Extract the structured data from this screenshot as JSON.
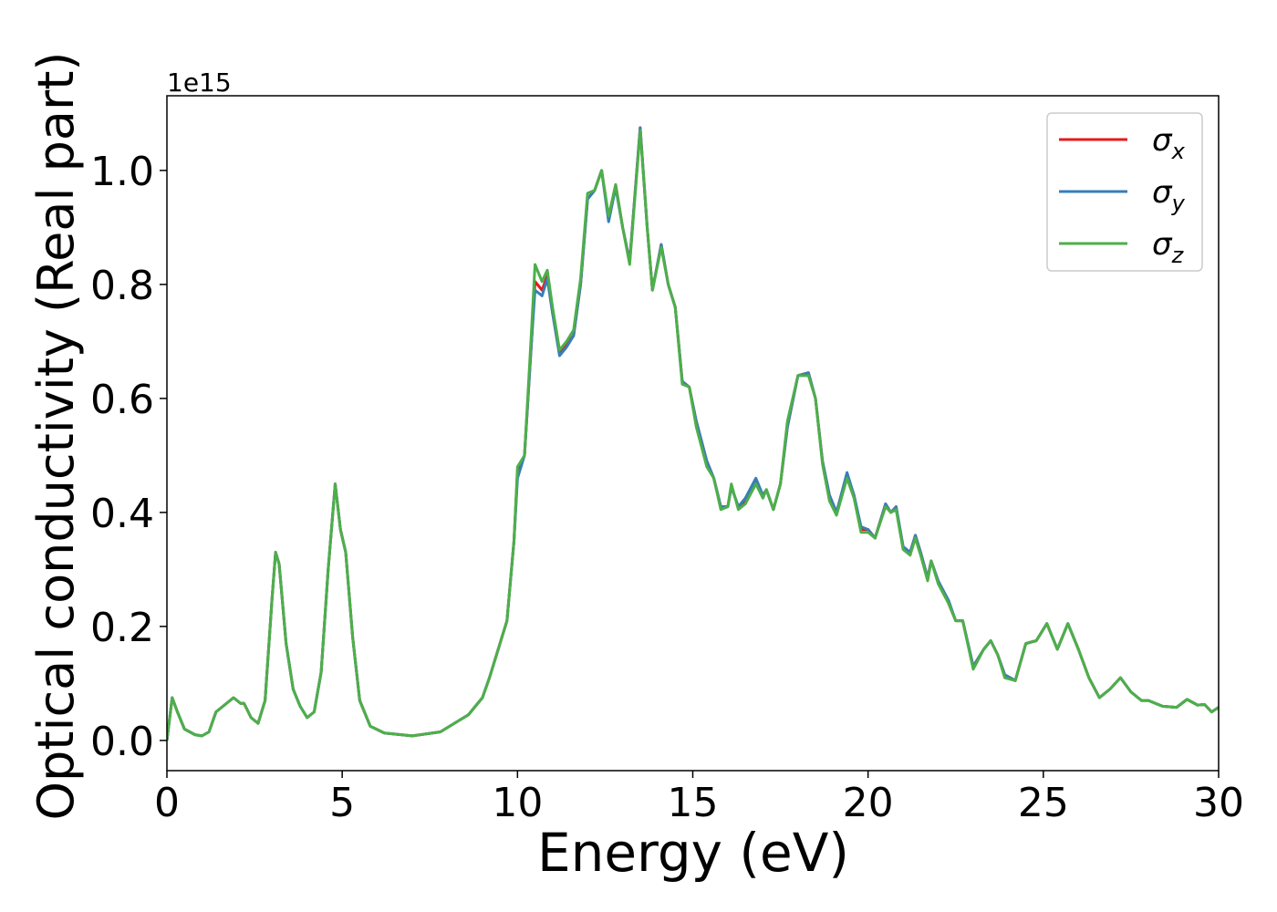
{
  "chart_data": {
    "type": "line",
    "xlabel": "Energy (eV)",
    "ylabel": "Optical conductivity (Real part)",
    "y_offset_label": "1e15",
    "x": [
      0,
      0.15,
      0.3,
      0.5,
      0.8,
      1.0,
      1.2,
      1.4,
      1.6,
      1.8,
      1.9,
      2.1,
      2.2,
      2.4,
      2.6,
      2.8,
      3.0,
      3.1,
      3.2,
      3.4,
      3.6,
      3.8,
      4.0,
      4.2,
      4.4,
      4.6,
      4.8,
      4.95,
      5.1,
      5.3,
      5.5,
      5.8,
      6.2,
      7.0,
      7.8,
      8.2,
      8.6,
      9.0,
      9.2,
      9.5,
      9.7,
      9.9,
      10.0,
      10.2,
      10.4,
      10.5,
      10.7,
      10.85,
      11.0,
      11.2,
      11.4,
      11.6,
      11.8,
      12.0,
      12.2,
      12.4,
      12.6,
      12.8,
      13.0,
      13.2,
      13.5,
      13.7,
      13.85,
      14.1,
      14.3,
      14.5,
      14.7,
      14.9,
      15.1,
      15.4,
      15.6,
      15.8,
      16.0,
      16.1,
      16.3,
      16.5,
      16.8,
      17.0,
      17.1,
      17.3,
      17.5,
      17.7,
      18.0,
      18.3,
      18.5,
      18.7,
      18.9,
      19.1,
      19.4,
      19.6,
      19.8,
      20.0,
      20.2,
      20.5,
      20.65,
      20.8,
      21.0,
      21.2,
      21.35,
      21.5,
      21.7,
      21.8,
      22.0,
      22.3,
      22.5,
      22.7,
      23.0,
      23.3,
      23.5,
      23.7,
      23.9,
      24.2,
      24.5,
      24.8,
      25.1,
      25.4,
      25.7,
      26.0,
      26.3,
      26.6,
      26.9,
      27.2,
      27.5,
      27.8,
      28.0,
      28.4,
      28.8,
      29.1,
      29.4,
      29.6,
      29.8,
      30.0
    ],
    "series": [
      {
        "name": "σx",
        "color": "#e41a1c",
        "values": [
          0,
          0.075,
          0.05,
          0.02,
          0.01,
          0.008,
          0.015,
          0.05,
          0.06,
          0.07,
          0.075,
          0.065,
          0.065,
          0.04,
          0.03,
          0.07,
          0.25,
          0.33,
          0.31,
          0.17,
          0.09,
          0.06,
          0.04,
          0.05,
          0.12,
          0.3,
          0.45,
          0.37,
          0.33,
          0.18,
          0.07,
          0.025,
          0.013,
          0.008,
          0.015,
          0.03,
          0.045,
          0.075,
          0.11,
          0.17,
          0.21,
          0.35,
          0.47,
          0.5,
          0.7,
          0.805,
          0.79,
          0.815,
          0.75,
          0.68,
          0.695,
          0.71,
          0.8,
          0.95,
          0.965,
          1.0,
          0.915,
          0.975,
          0.9,
          0.84,
          1.075,
          0.9,
          0.79,
          0.87,
          0.8,
          0.76,
          0.63,
          0.62,
          0.56,
          0.49,
          0.46,
          0.41,
          0.41,
          0.445,
          0.41,
          0.42,
          0.455,
          0.43,
          0.44,
          0.405,
          0.45,
          0.55,
          0.64,
          0.645,
          0.6,
          0.49,
          0.43,
          0.4,
          0.465,
          0.43,
          0.37,
          0.37,
          0.355,
          0.415,
          0.4,
          0.41,
          0.34,
          0.33,
          0.36,
          0.33,
          0.285,
          0.315,
          0.28,
          0.24,
          0.21,
          0.21,
          0.13,
          0.16,
          0.175,
          0.15,
          0.115,
          0.105,
          0.17,
          0.175,
          0.205,
          0.16,
          0.205,
          0.16,
          0.11,
          0.075,
          0.09,
          0.11,
          0.085,
          0.07,
          0.07,
          0.06,
          0.058,
          0.072,
          0.062,
          0.063,
          0.05,
          0.058
        ]
      },
      {
        "name": "σy",
        "color": "#377eb8",
        "values": [
          0,
          0.075,
          0.05,
          0.02,
          0.01,
          0.008,
          0.015,
          0.05,
          0.06,
          0.07,
          0.075,
          0.065,
          0.065,
          0.04,
          0.03,
          0.07,
          0.25,
          0.33,
          0.31,
          0.17,
          0.09,
          0.06,
          0.04,
          0.05,
          0.12,
          0.3,
          0.45,
          0.37,
          0.33,
          0.18,
          0.07,
          0.025,
          0.013,
          0.008,
          0.015,
          0.03,
          0.045,
          0.075,
          0.11,
          0.17,
          0.21,
          0.35,
          0.46,
          0.5,
          0.7,
          0.79,
          0.78,
          0.81,
          0.75,
          0.675,
          0.69,
          0.71,
          0.8,
          0.95,
          0.965,
          1.0,
          0.91,
          0.97,
          0.9,
          0.84,
          1.075,
          0.9,
          0.79,
          0.87,
          0.8,
          0.76,
          0.63,
          0.62,
          0.56,
          0.49,
          0.46,
          0.41,
          0.41,
          0.445,
          0.41,
          0.425,
          0.46,
          0.43,
          0.44,
          0.405,
          0.45,
          0.55,
          0.64,
          0.645,
          0.6,
          0.49,
          0.43,
          0.4,
          0.47,
          0.43,
          0.375,
          0.37,
          0.355,
          0.415,
          0.4,
          0.41,
          0.34,
          0.33,
          0.36,
          0.33,
          0.285,
          0.315,
          0.28,
          0.245,
          0.21,
          0.21,
          0.13,
          0.16,
          0.175,
          0.15,
          0.115,
          0.105,
          0.17,
          0.175,
          0.205,
          0.16,
          0.205,
          0.16,
          0.11,
          0.075,
          0.09,
          0.11,
          0.085,
          0.07,
          0.07,
          0.06,
          0.058,
          0.072,
          0.062,
          0.063,
          0.05,
          0.058
        ]
      },
      {
        "name": "σz",
        "color": "#4daf4a",
        "values": [
          0,
          0.075,
          0.05,
          0.02,
          0.01,
          0.008,
          0.015,
          0.05,
          0.06,
          0.07,
          0.075,
          0.065,
          0.065,
          0.04,
          0.03,
          0.07,
          0.25,
          0.33,
          0.31,
          0.17,
          0.09,
          0.06,
          0.04,
          0.05,
          0.12,
          0.3,
          0.45,
          0.37,
          0.33,
          0.18,
          0.07,
          0.025,
          0.013,
          0.008,
          0.015,
          0.03,
          0.045,
          0.075,
          0.11,
          0.17,
          0.21,
          0.35,
          0.48,
          0.5,
          0.72,
          0.835,
          0.805,
          0.825,
          0.76,
          0.685,
          0.7,
          0.72,
          0.81,
          0.96,
          0.965,
          1.0,
          0.92,
          0.975,
          0.9,
          0.835,
          1.07,
          0.9,
          0.79,
          0.865,
          0.8,
          0.76,
          0.625,
          0.62,
          0.55,
          0.48,
          0.46,
          0.405,
          0.41,
          0.45,
          0.405,
          0.415,
          0.45,
          0.425,
          0.44,
          0.405,
          0.45,
          0.56,
          0.64,
          0.64,
          0.6,
          0.485,
          0.42,
          0.395,
          0.46,
          0.425,
          0.365,
          0.365,
          0.355,
          0.41,
          0.4,
          0.405,
          0.335,
          0.325,
          0.355,
          0.325,
          0.28,
          0.315,
          0.275,
          0.24,
          0.21,
          0.21,
          0.125,
          0.16,
          0.175,
          0.15,
          0.11,
          0.105,
          0.17,
          0.175,
          0.205,
          0.16,
          0.205,
          0.16,
          0.11,
          0.075,
          0.09,
          0.11,
          0.085,
          0.07,
          0.07,
          0.06,
          0.058,
          0.072,
          0.062,
          0.063,
          0.05,
          0.058
        ]
      }
    ],
    "xlim": [
      0,
      30
    ],
    "xticks": [
      0,
      5,
      10,
      15,
      20,
      25,
      30
    ],
    "ylim": [
      -0.053,
      1.131
    ],
    "yticks": [
      {
        "value": 0,
        "label": "0.0"
      },
      0.2,
      0.4,
      0.6,
      0.8,
      {
        "value": 1,
        "label": "1.0"
      }
    ],
    "legend": "upper right",
    "grid": false
  }
}
